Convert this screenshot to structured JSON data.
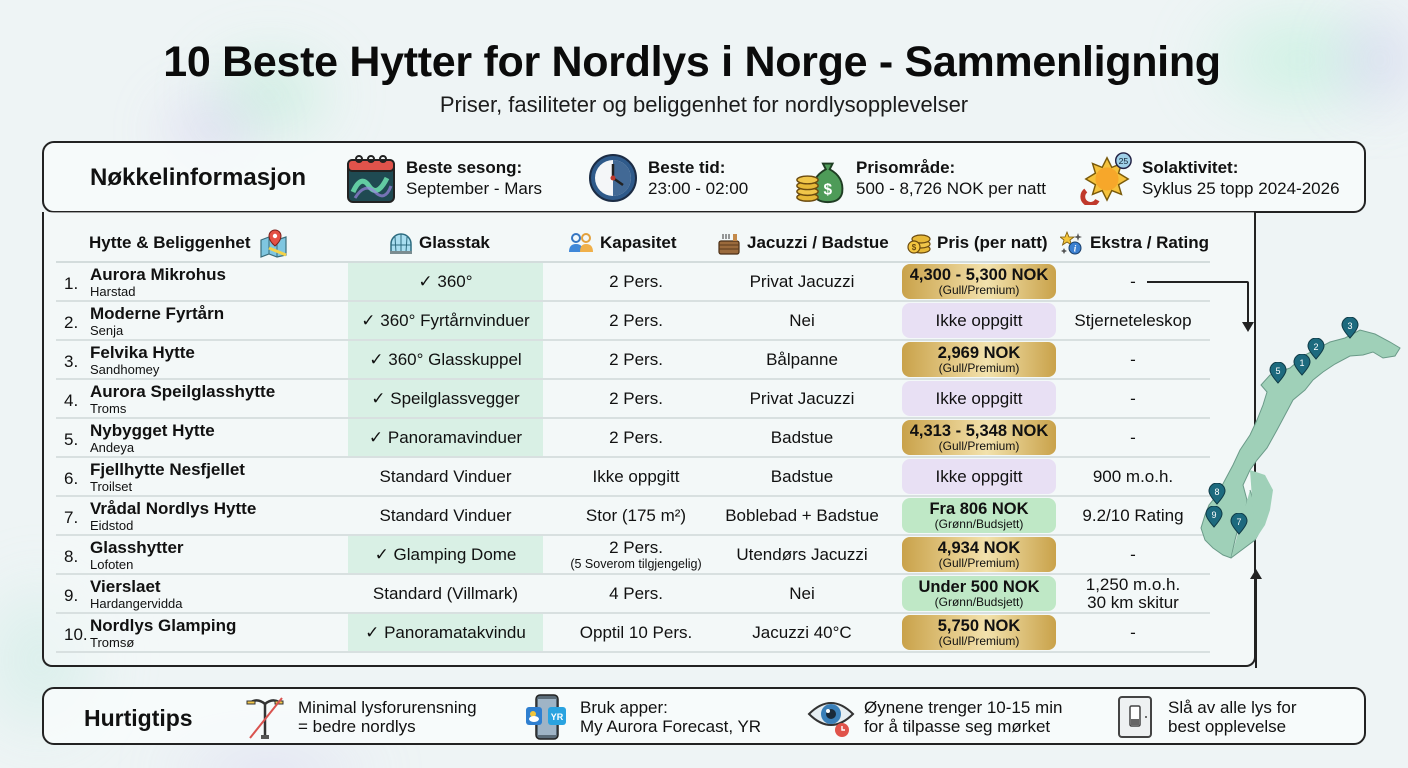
{
  "header": {
    "title": "10 Beste Hytter for Nordlys i Norge - Sammenligning",
    "subtitle": "Priser, fasiliteter og beliggenhet for nordlysopplevelser"
  },
  "key_info": {
    "title": "Nøkkelinformasjon",
    "items": [
      {
        "icon": "aurora-calendar-icon",
        "label": "Beste sesong:",
        "value": "September - Mars"
      },
      {
        "icon": "clock-icon",
        "label": "Beste tid:",
        "value": "23:00 - 02:00"
      },
      {
        "icon": "money-bag-icon",
        "label": "Prisområde:",
        "value": "500 - 8,726 NOK per natt"
      },
      {
        "icon": "sun-magnet-icon",
        "label": "Solaktivitet:",
        "value": "Syklus 25 topp 2024-2026",
        "badge": "25"
      }
    ]
  },
  "table": {
    "columns": [
      {
        "key": "cabin",
        "label": "Hytte & Beliggenhet",
        "icon": "map-pin-icon"
      },
      {
        "key": "glass",
        "label": "Glasstak",
        "icon": "glass-dome-icon"
      },
      {
        "key": "capacity",
        "label": "Kapasitet",
        "icon": "people-icon"
      },
      {
        "key": "jacuzzi",
        "label": "Jacuzzi / Badstue",
        "icon": "hot-tub-icon"
      },
      {
        "key": "price",
        "label": "Pris (per natt)",
        "icon": "coins-icon"
      },
      {
        "key": "extra",
        "label": "Ekstra / Rating",
        "icon": "stars-info-icon"
      }
    ],
    "rows": [
      {
        "num": "1.",
        "name": "Aurora Mikrohus",
        "location": "Harstad",
        "glass": "✓ 360°",
        "glass_highlight": true,
        "capacity": "2 Pers.",
        "capacity_note": "",
        "jacuzzi": "Privat Jacuzzi",
        "price": "4,300 - 5,300 NOK",
        "price_tier": "(Gull/Premium)",
        "price_style": "gold",
        "extra": "-",
        "extra2": ""
      },
      {
        "num": "2.",
        "name": "Moderne Fyrtårn",
        "location": "Senja",
        "glass": "✓ 360° Fyrtårnvinduer",
        "glass_highlight": true,
        "capacity": "2 Pers.",
        "capacity_note": "",
        "jacuzzi": "Nei",
        "price": "Ikke oppgitt",
        "price_tier": "",
        "price_style": "lav",
        "extra": "Stjerneteleskop",
        "extra2": ""
      },
      {
        "num": "3.",
        "name": "Felvika Hytte",
        "location": "Sandhomey",
        "glass": "✓ 360° Glasskuppel",
        "glass_highlight": true,
        "capacity": "2 Pers.",
        "capacity_note": "",
        "jacuzzi": "Bålpanne",
        "price": "2,969 NOK",
        "price_tier": "(Gull/Premium)",
        "price_style": "gold",
        "extra": "-",
        "extra2": ""
      },
      {
        "num": "4.",
        "name": "Aurora Speilglasshytte",
        "location": "Troms",
        "glass": "✓ Speilglassvegger",
        "glass_highlight": true,
        "capacity": "2 Pers.",
        "capacity_note": "",
        "jacuzzi": "Privat Jacuzzi",
        "price": "Ikke oppgitt",
        "price_tier": "",
        "price_style": "lav",
        "extra": "-",
        "extra2": ""
      },
      {
        "num": "5.",
        "name": "Nybygget Hytte",
        "location": "Andeya",
        "glass": "✓ Panoramavinduer",
        "glass_highlight": true,
        "capacity": "2 Pers.",
        "capacity_note": "",
        "jacuzzi": "Badstue",
        "price": "4,313 - 5,348 NOK",
        "price_tier": "(Gull/Premium)",
        "price_style": "gold",
        "extra": "-",
        "extra2": ""
      },
      {
        "num": "6.",
        "name": "Fjellhytte Nesfjellet",
        "location": "Troilset",
        "glass": "Standard Vinduer",
        "glass_highlight": false,
        "capacity": "Ikke oppgitt",
        "capacity_note": "",
        "jacuzzi": "Badstue",
        "price": "Ikke oppgitt",
        "price_tier": "",
        "price_style": "lav",
        "extra": "900 m.o.h.",
        "extra2": ""
      },
      {
        "num": "7.",
        "name": "Vrådal Nordlys Hytte",
        "location": "Eidstod",
        "glass": "Standard Vinduer",
        "glass_highlight": false,
        "capacity": "Stor (175 m²)",
        "capacity_note": "",
        "jacuzzi": "Boblebad + Badstue",
        "price": "Fra 806 NOK",
        "price_tier": "(Grønn/Budsjett)",
        "price_style": "grn",
        "extra": "9.2/10 Rating",
        "extra2": ""
      },
      {
        "num": "8.",
        "name": "Glasshytter",
        "location": "Lofoten",
        "glass": "✓ Glamping Dome",
        "glass_highlight": true,
        "capacity": "2 Pers.",
        "capacity_note": "(5 Soverom tilgjengelig)",
        "jacuzzi": "Utendørs Jacuzzi",
        "price": "4,934 NOK",
        "price_tier": "(Gull/Premium)",
        "price_style": "gold",
        "extra": "-",
        "extra2": ""
      },
      {
        "num": "9.",
        "name": "Vierslaet",
        "location": "Hardangervidda",
        "glass": "Standard (Villmark)",
        "glass_highlight": false,
        "capacity": "4 Pers.",
        "capacity_note": "",
        "jacuzzi": "Nei",
        "price": "Under 500 NOK",
        "price_tier": "(Grønn/Budsjett)",
        "price_style": "grn",
        "extra": "1,250 m.o.h.",
        "extra2": "30 km skitur"
      },
      {
        "num": "10.",
        "name": "Nordlys Glamping",
        "location": "Tromsø",
        "glass": "✓ Panoramatakvindu",
        "glass_highlight": true,
        "capacity": "Opptil 10 Pers.",
        "capacity_note": "",
        "jacuzzi": "Jacuzzi 40°C",
        "price": "5,750 NOK",
        "price_tier": "(Gull/Premium)",
        "price_style": "gold",
        "extra": "-",
        "extra2": ""
      }
    ]
  },
  "map": {
    "markers": [
      "1",
      "2",
      "3",
      "5",
      "7",
      "8",
      "9"
    ],
    "color_land": "#9fd0b8",
    "color_marker": "#1d6a7e"
  },
  "tips": {
    "title": "Hurtigtips",
    "items": [
      {
        "icon": "crossed-streetlight-icon",
        "line1": "Minimal lysforurensning",
        "line2": "= bedre nordlys"
      },
      {
        "icon": "phone-apps-icon",
        "line1": "Bruk apper:",
        "line2": "My Aurora Forecast, YR",
        "badge": "YR"
      },
      {
        "icon": "eye-timer-icon",
        "line1": "Øynene trenger 10-15 min",
        "line2": "for å tilpasse seg mørket"
      },
      {
        "icon": "light-switch-icon",
        "line1": "Slå av alle lys for",
        "line2": "best opplevelse"
      }
    ]
  },
  "colors": {
    "gold_pill": "#dcbf74",
    "lavender_pill": "#e8e0f4",
    "green_pill": "#bfe8c6",
    "glass_highlight": "#d9f0e5"
  }
}
